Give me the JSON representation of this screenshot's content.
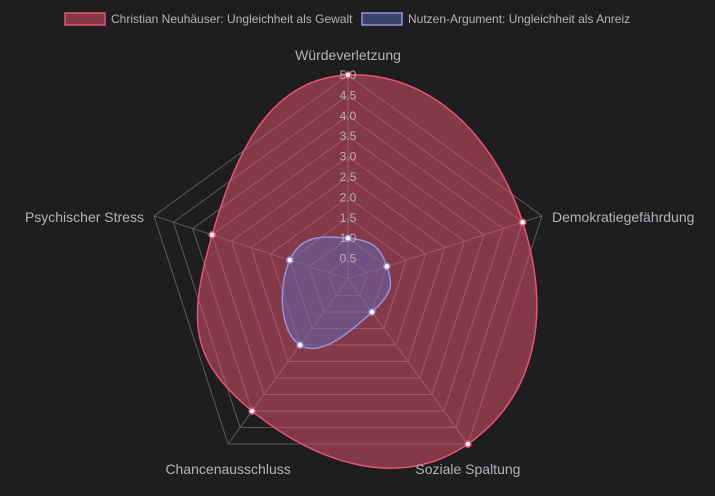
{
  "chart_data": {
    "type": "radar",
    "axes": [
      "Würdeverletzung",
      "Demokratiegefährdung",
      "Soziale Spaltung",
      "Chancenausschluss",
      "Psychischer Stress"
    ],
    "r_range": [
      0,
      5
    ],
    "ticks": [
      "0.5",
      "1.0",
      "1.5",
      "2.0",
      "2.5",
      "3.0",
      "3.5",
      "4.0",
      "4.5",
      "5.0"
    ],
    "grid": true,
    "legend_position": "top",
    "series": [
      {
        "name": "Christian Neuhäuser: Ungleichheit als Gewalt",
        "values": [
          5.0,
          4.5,
          5.0,
          4.0,
          3.5
        ],
        "color": "#e8546f",
        "fill": "rgba(232,84,111,0.5)"
      },
      {
        "name": "Nutzen-Argument: Ungleichheit als Anreiz",
        "values": [
          1.0,
          1.0,
          1.0,
          2.0,
          1.5
        ],
        "color": "#9b8fd8",
        "fill": "rgba(90,110,200,0.45)"
      }
    ]
  }
}
